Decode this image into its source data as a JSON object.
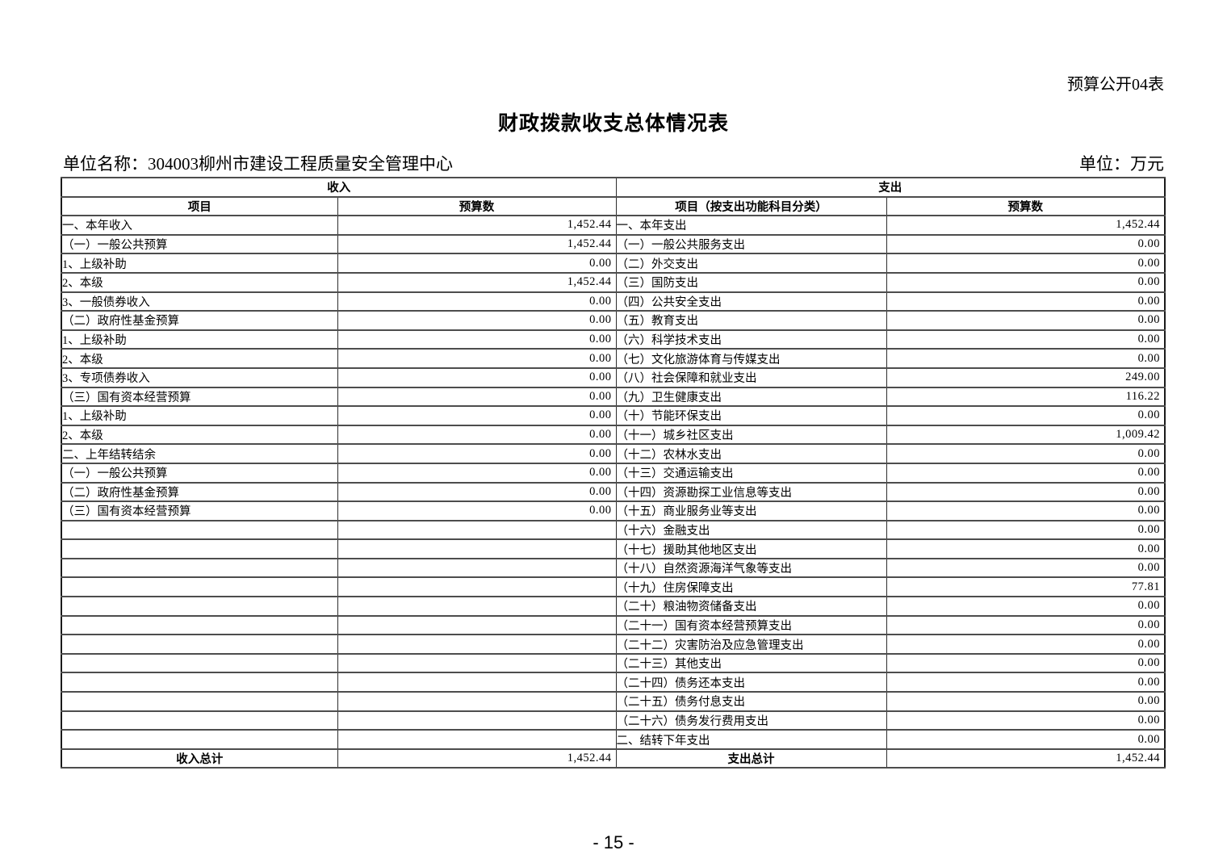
{
  "colors": {
    "background": "#ffffff",
    "text": "#000000",
    "table_border": "#333333"
  },
  "page": {
    "form_code": "预算公开04表",
    "title": "财政拨款收支总体情况表",
    "unit_name": "单位名称：304003柳州市建设工程质量安全管理中心",
    "unit_of_measure": "单位：万元",
    "page_number": "- 15 -"
  },
  "table": {
    "income_section_header": "收入",
    "expense_section_header": "支出",
    "income_item_header": "项目",
    "income_value_header": "预算数",
    "expense_item_header": "项目（按支出功能科目分类）",
    "expense_value_header": "预算数",
    "rows": [
      {
        "left_item": "一、本年收入",
        "left_value": "1,452.44",
        "left_indent": 0,
        "right_item": "一、本年支出",
        "right_value": "1,452.44",
        "right_indent": 0
      },
      {
        "left_item": "（一）一般公共预算",
        "left_value": "1,452.44",
        "left_indent": 0,
        "right_item": "（一）一般公共服务支出",
        "right_value": "0.00",
        "right_indent": 1
      },
      {
        "left_item": "1、上级补助",
        "left_value": "0.00",
        "left_indent": 2,
        "right_item": "（二）外交支出",
        "right_value": "0.00",
        "right_indent": 1
      },
      {
        "left_item": "2、本级",
        "left_value": "1,452.44",
        "left_indent": 2,
        "right_item": "（三）国防支出",
        "right_value": "0.00",
        "right_indent": 1
      },
      {
        "left_item": "3、一般债券收入",
        "left_value": "0.00",
        "left_indent": 2,
        "right_item": "（四）公共安全支出",
        "right_value": "0.00",
        "right_indent": 1
      },
      {
        "left_item": "（二）政府性基金预算",
        "left_value": "0.00",
        "left_indent": 0,
        "right_item": "（五）教育支出",
        "right_value": "0.00",
        "right_indent": 1
      },
      {
        "left_item": "1、上级补助",
        "left_value": "0.00",
        "left_indent": 2,
        "right_item": "（六）科学技术支出",
        "right_value": "0.00",
        "right_indent": 1
      },
      {
        "left_item": "2、本级",
        "left_value": "0.00",
        "left_indent": 2,
        "right_item": "（七）文化旅游体育与传媒支出",
        "right_value": "0.00",
        "right_indent": 1
      },
      {
        "left_item": "3、专项债券收入",
        "left_value": "0.00",
        "left_indent": 2,
        "right_item": "（八）社会保障和就业支出",
        "right_value": "249.00",
        "right_indent": 1
      },
      {
        "left_item": "（三）国有资本经营预算",
        "left_value": "0.00",
        "left_indent": 0,
        "right_item": "（九）卫生健康支出",
        "right_value": "116.22",
        "right_indent": 1
      },
      {
        "left_item": "1、上级补助",
        "left_value": "0.00",
        "left_indent": 2,
        "right_item": "（十）节能环保支出",
        "right_value": "0.00",
        "right_indent": 1
      },
      {
        "left_item": "2、本级",
        "left_value": "0.00",
        "left_indent": 2,
        "right_item": "（十一）城乡社区支出",
        "right_value": "1,009.42",
        "right_indent": 1
      },
      {
        "left_item": "二、上年结转结余",
        "left_value": "0.00",
        "left_indent": 0,
        "right_item": "（十二）农林水支出",
        "right_value": "0.00",
        "right_indent": 1
      },
      {
        "left_item": "（一）一般公共预算",
        "left_value": "0.00",
        "left_indent": 0,
        "right_item": "（十三）交通运输支出",
        "right_value": "0.00",
        "right_indent": 1
      },
      {
        "left_item": "（二）政府性基金预算",
        "left_value": "0.00",
        "left_indent": 0,
        "right_item": "（十四）资源勘探工业信息等支出",
        "right_value": "0.00",
        "right_indent": 1
      },
      {
        "left_item": "（三）国有资本经营预算",
        "left_value": "0.00",
        "left_indent": 0,
        "right_item": "（十五）商业服务业等支出",
        "right_value": "0.00",
        "right_indent": 1
      },
      {
        "left_item": "",
        "left_value": "",
        "left_indent": 0,
        "right_item": "（十六）金融支出",
        "right_value": "0.00",
        "right_indent": 1
      },
      {
        "left_item": "",
        "left_value": "",
        "left_indent": 0,
        "right_item": "（十七）援助其他地区支出",
        "right_value": "0.00",
        "right_indent": 1
      },
      {
        "left_item": "",
        "left_value": "",
        "left_indent": 0,
        "right_item": "（十八）自然资源海洋气象等支出",
        "right_value": "0.00",
        "right_indent": 1
      },
      {
        "left_item": "",
        "left_value": "",
        "left_indent": 0,
        "right_item": "（十九）住房保障支出",
        "right_value": "77.81",
        "right_indent": 1
      },
      {
        "left_item": "",
        "left_value": "",
        "left_indent": 0,
        "right_item": "（二十）粮油物资储备支出",
        "right_value": "0.00",
        "right_indent": 1
      },
      {
        "left_item": "",
        "left_value": "",
        "left_indent": 0,
        "right_item": "（二十一）国有资本经营预算支出",
        "right_value": "0.00",
        "right_indent": 1
      },
      {
        "left_item": "",
        "left_value": "",
        "left_indent": 0,
        "right_item": "（二十二）灾害防治及应急管理支出",
        "right_value": "0.00",
        "right_indent": 1
      },
      {
        "left_item": "",
        "left_value": "",
        "left_indent": 0,
        "right_item": "（二十三）其他支出",
        "right_value": "0.00",
        "right_indent": 1
      },
      {
        "left_item": "",
        "left_value": "",
        "left_indent": 0,
        "right_item": "（二十四）债务还本支出",
        "right_value": "0.00",
        "right_indent": 1
      },
      {
        "left_item": "",
        "left_value": "",
        "left_indent": 0,
        "right_item": "（二十五）债务付息支出",
        "right_value": "0.00",
        "right_indent": 1
      },
      {
        "left_item": "",
        "left_value": "",
        "left_indent": 0,
        "right_item": "（二十六）债务发行费用支出",
        "right_value": "0.00",
        "right_indent": 1
      },
      {
        "left_item": "",
        "left_value": "",
        "left_indent": 0,
        "right_item": "二、结转下年支出",
        "right_value": "0.00",
        "right_indent": 0
      }
    ],
    "total_row": {
      "income_label": "收入总计",
      "income_value": "1,452.44",
      "expense_label": "支出总计",
      "expense_value": "1,452.44"
    }
  }
}
